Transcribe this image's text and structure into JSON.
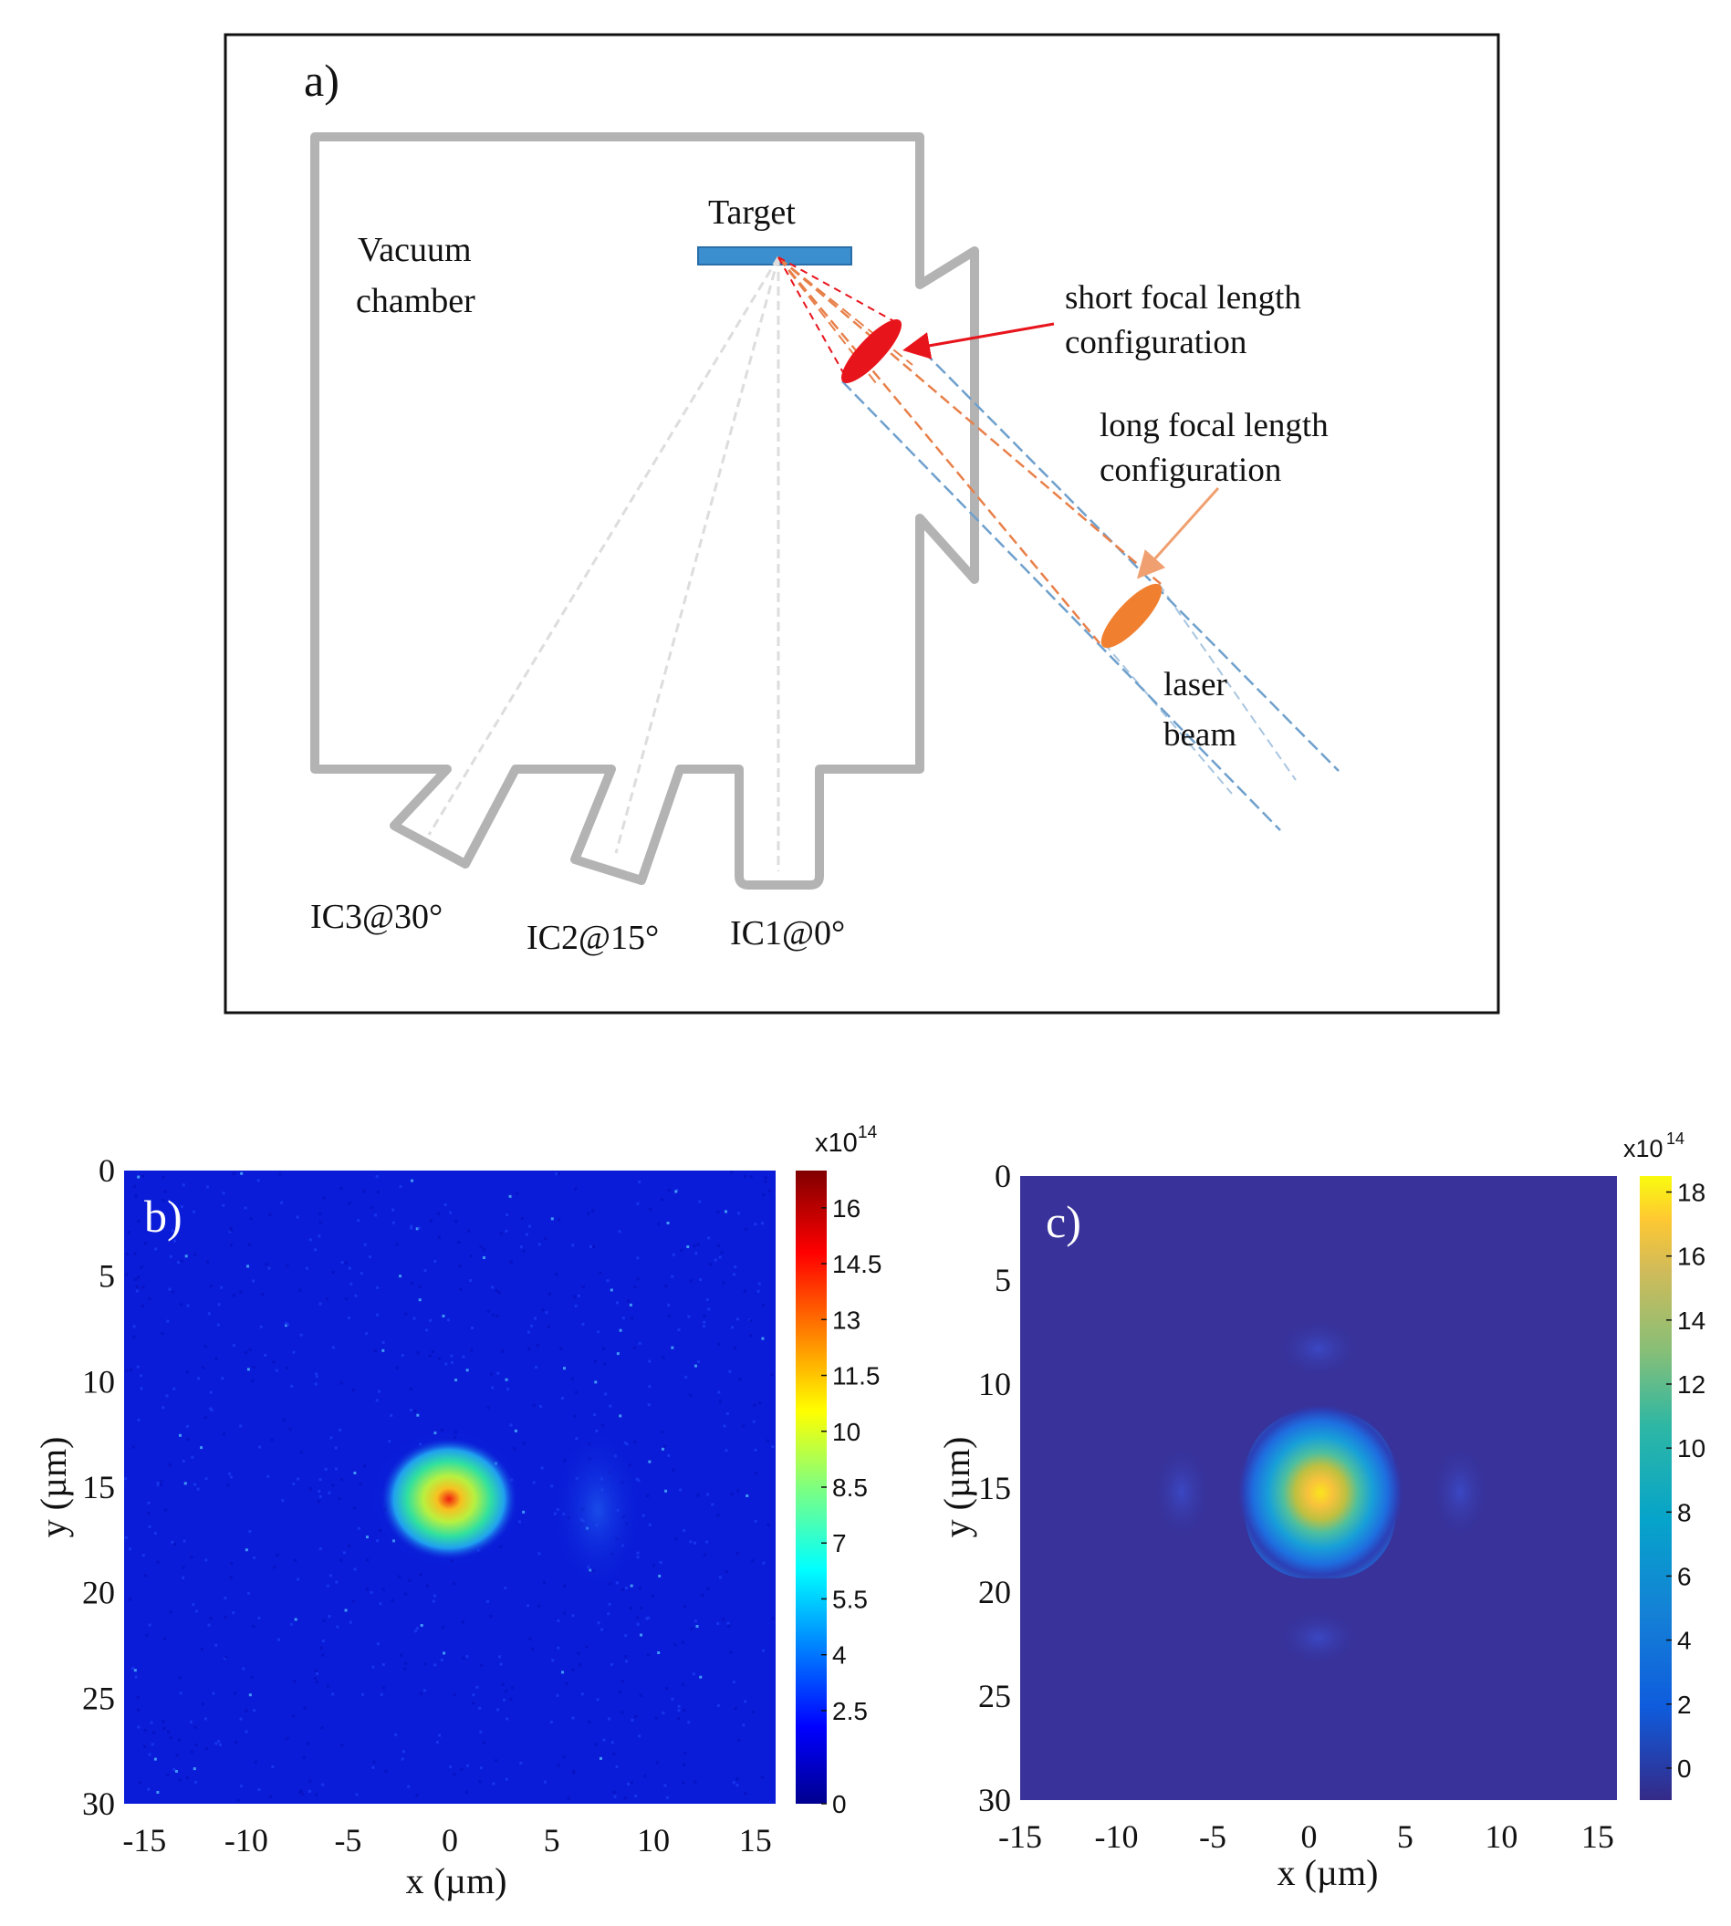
{
  "panel_a": {
    "label": "a)",
    "vacuum_line1": "Vacuum",
    "vacuum_line2": "chamber",
    "target": "Target",
    "short_line1": "short  focal  length",
    "short_line2": "configuration",
    "long_line1": "long  focal  length",
    "long_line2": "configuration",
    "laser_line1": "laser",
    "laser_line2": "beam",
    "ic3": "IC3@30°",
    "ic2": "IC2@15°",
    "ic1": "IC1@0°",
    "colors": {
      "chamber": "#b3b3b3",
      "target": "#3b8fce",
      "short_lens": "#e8141c",
      "long_lens": "#f08030",
      "beam_blue": "#6fa0cc",
      "beam_orange": "#e8804a",
      "arrow_red": "#e8141c",
      "arrow_orange": "#f0a070"
    }
  },
  "chart_data": [
    {
      "type": "heatmap",
      "panel_label": "b)",
      "description_source": "measured",
      "xlabel": "x (µm)",
      "ylabel": "y (µm)",
      "xlim": [
        -16,
        16
      ],
      "ylim": [
        0,
        30
      ],
      "xticks": [
        "-15",
        "-10",
        "-5",
        "0",
        "5",
        "10",
        "15"
      ],
      "yticks": [
        "0",
        "5",
        "10",
        "15",
        "20",
        "25",
        "30"
      ],
      "colorbar": {
        "multiplier": "x10",
        "exponent": "14",
        "range": [
          0,
          17
        ],
        "ticks": [
          "16",
          "14.5",
          "13",
          "11.5",
          "10",
          "8.5",
          "7",
          "5.5",
          "4",
          "2.5",
          "0"
        ],
        "colormap": "jet"
      },
      "peak": {
        "x": 0,
        "y": 14.8,
        "value": 16
      }
    },
    {
      "type": "heatmap",
      "panel_label": "c)",
      "description_source": "simulated",
      "xlabel": "x (µm)",
      "ylabel": "y (µm)",
      "xlim": [
        -15,
        16
      ],
      "ylim": [
        0,
        30
      ],
      "xticks": [
        "-15",
        "-10",
        "-5",
        "0",
        "5",
        "10",
        "15"
      ],
      "yticks": [
        "0",
        "5",
        "10",
        "15",
        "20",
        "25",
        "30"
      ],
      "colorbar": {
        "multiplier": "x10",
        "exponent": "14",
        "range": [
          -1,
          18.5
        ],
        "ticks": [
          "18",
          "16",
          "14",
          "12",
          "10",
          "8",
          "6",
          "4",
          "2",
          "0"
        ],
        "colormap": "parula"
      },
      "peak": {
        "x": 0,
        "y": 14.5,
        "value": 18
      }
    }
  ]
}
